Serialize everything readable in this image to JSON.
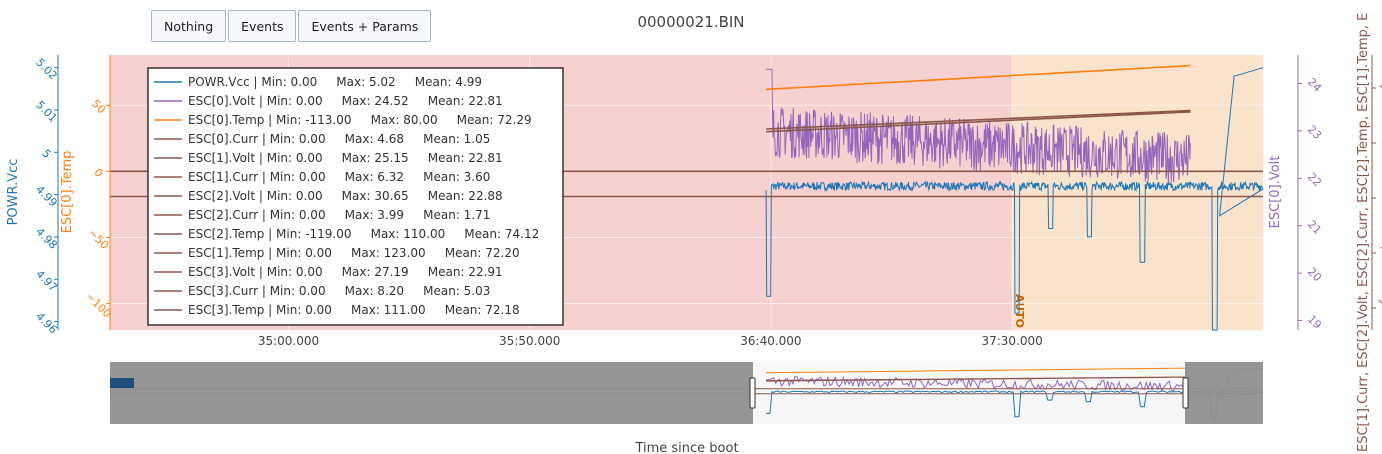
{
  "buttons": [
    {
      "label": "Nothing"
    },
    {
      "label": "Events"
    },
    {
      "label": "Events + Params"
    }
  ],
  "chart_data": {
    "type": "line",
    "title": "00000021.BIN",
    "xlabel": "Time since boot",
    "x_ticks": [
      "35:00.000",
      "35:50.000",
      "36:40.000",
      "37:30.000"
    ],
    "x_tick_seconds": [
      2100,
      2150,
      2200,
      2250
    ],
    "x_range_seconds": [
      2063,
      2302
    ],
    "colors": {
      "blue": "#1f77b4",
      "orange": "#ff7f0e",
      "purple": "#9467bd",
      "brown": "#8c564b"
    },
    "axes": {
      "powr": {
        "label": "POWR.Vcc",
        "ticks": [
          "4.96",
          "4.97",
          "4.98",
          "4.99",
          "5",
          "5.01",
          "5.02"
        ],
        "range": [
          4.958,
          5.023
        ]
      },
      "temp": {
        "label": "ESC[0].Temp",
        "ticks": [
          "−100",
          "−50",
          "0",
          "50"
        ],
        "range": [
          -120,
          88
        ]
      },
      "volt": {
        "label": "ESC[0].Volt",
        "ticks": [
          "19",
          "20",
          "21",
          "22",
          "23",
          "24"
        ],
        "range": [
          18.8,
          24.6
        ]
      },
      "multi": {
        "label": "ESC[1].Curr, ESC[2].Volt, ESC[2].Curr, ESC[2].Temp, ESC[1].Temp, E",
        "ticks": [
          "−100",
          "−50",
          "0",
          "50",
          "100"
        ],
        "range": [
          -120,
          130
        ]
      }
    },
    "modes": [
      {
        "label": "",
        "x_start": 2063,
        "x_end": 2250,
        "color": "#f7d0d0"
      },
      {
        "label": "AUTO",
        "x_start": 2250,
        "x_end": 2302,
        "color": "#f9e3cc"
      }
    ],
    "legend": [
      {
        "text": "POWR.Vcc | Min: 0.00     Max: 5.02     Mean: 4.99",
        "color": "#1f77b4"
      },
      {
        "text": "ESC[0].Volt | Min: 0.00     Max: 24.52     Mean: 22.81",
        "color": "#9467bd"
      },
      {
        "text": "ESC[0].Temp | Min: -113.00     Max: 80.00     Mean: 72.29",
        "color": "#ff7f0e"
      },
      {
        "text": "ESC[0].Curr | Min: 0.00     Max: 4.68     Mean: 1.05",
        "color": "#8c564b"
      },
      {
        "text": "ESC[1].Volt | Min: 0.00     Max: 25.15     Mean: 22.81",
        "color": "#8c564b"
      },
      {
        "text": "ESC[1].Curr | Min: 0.00     Max: 6.32     Mean: 3.60",
        "color": "#8c564b"
      },
      {
        "text": "ESC[2].Volt | Min: 0.00     Max: 30.65     Mean: 22.88",
        "color": "#8c564b"
      },
      {
        "text": "ESC[2].Curr | Min: 0.00     Max: 3.99     Mean: 1.71",
        "color": "#8c564b"
      },
      {
        "text": "ESC[2].Temp | Min: -119.00     Max: 110.00     Mean: 74.12",
        "color": "#8c564b"
      },
      {
        "text": "ESC[1].Temp | Min: 0.00     Max: 123.00     Mean: 72.20",
        "color": "#8c564b"
      },
      {
        "text": "ESC[3].Volt | Min: 0.00     Max: 27.19     Mean: 22.91",
        "color": "#8c564b"
      },
      {
        "text": "ESC[3].Curr | Min: 0.00     Max: 8.20     Mean: 5.03",
        "color": "#8c564b"
      },
      {
        "text": "ESC[3].Temp | Min: 0.00     Max: 111.00     Mean: 72.18",
        "color": "#8c564b"
      }
    ],
    "series": [
      {
        "name": "POWR.Vcc",
        "axis": "powr",
        "color": "#1f77b4",
        "x_start": 2199,
        "x_end": 2302,
        "base": 4.992,
        "noise": 0.001,
        "dips": [
          [
            2199.5,
            4.966
          ],
          [
            2251,
            4.962
          ],
          [
            2258,
            4.982
          ],
          [
            2266,
            4.98
          ],
          [
            2277,
            4.974
          ],
          [
            2292,
            4.958
          ]
        ],
        "tail": [
          [
            2293,
            4.985
          ],
          [
            2296,
            5.018
          ],
          [
            2302,
            5.02
          ]
        ]
      },
      {
        "name": "ESC[0].Volt",
        "axis": "volt",
        "color": "#9467bd",
        "x_start": 2199,
        "x_end": 2287,
        "base_from": 23.0,
        "base_to": 22.4,
        "noise": 0.55,
        "start_spike": 24.3
      },
      {
        "name": "ESC[0].Temp",
        "axis": "temp",
        "color": "#ff7f0e",
        "x_start": 2199,
        "x_end": 2287,
        "from": 62,
        "to": 80
      },
      {
        "name": "ESC[1].Temp",
        "axis": "temp",
        "color": "#8c564b",
        "x_start": 2199,
        "x_end": 2287,
        "from": 32,
        "to": 46
      },
      {
        "name": "ESC[2].Temp",
        "axis": "temp",
        "color": "#8c564b",
        "x_start": 2199,
        "x_end": 2287,
        "from": 30,
        "to": 45
      },
      {
        "name": "ESC[0].Curr",
        "axis": "temp",
        "color": "#8c564b",
        "x_start": 2063,
        "x_end": 2302,
        "from": 0,
        "to": 0
      },
      {
        "name": "ESC[3].Curr",
        "axis": "temp",
        "color": "#8c564b",
        "x_start": 2063,
        "x_end": 2302,
        "from": -19,
        "to": -19
      }
    ]
  }
}
